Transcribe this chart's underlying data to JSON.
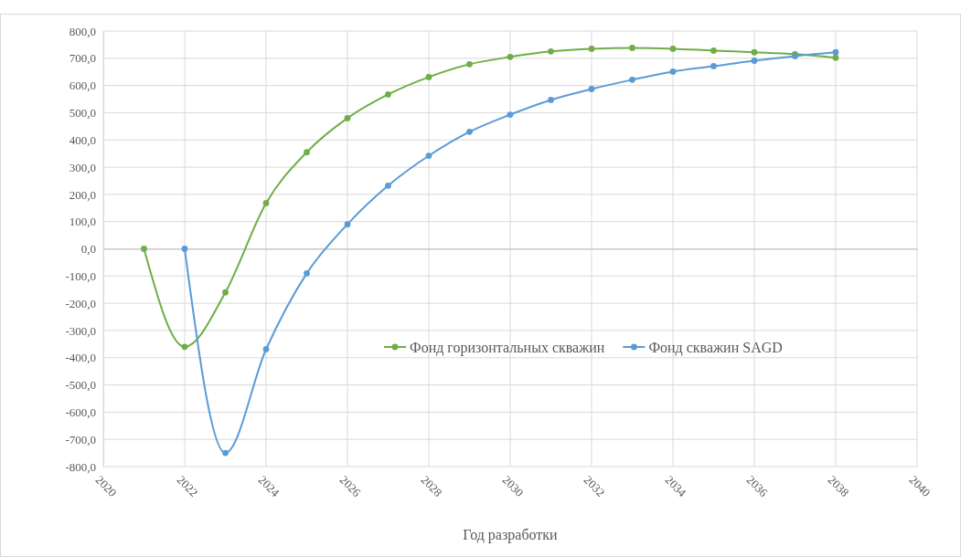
{
  "chart_data": {
    "type": "line",
    "xlabel": "Год разработки",
    "xlim": [
      2020,
      2040
    ],
    "xticks": [
      2020,
      2022,
      2024,
      2026,
      2028,
      2030,
      2032,
      2034,
      2036,
      2038,
      2040
    ],
    "ylim": [
      -800,
      800
    ],
    "yticks": [
      {
        "value": -800,
        "label": "-800,0"
      },
      {
        "value": -700,
        "label": "-700,0"
      },
      {
        "value": -600,
        "label": "-600,0"
      },
      {
        "value": -500,
        "label": "-500,0"
      },
      {
        "value": -400,
        "label": "-400,0"
      },
      {
        "value": -300,
        "label": "-300,0"
      },
      {
        "value": -200,
        "label": "-200,0"
      },
      {
        "value": -100,
        "label": "-100,0"
      },
      {
        "value": 0,
        "label": "0,0"
      },
      {
        "value": 100,
        "label": "100,0"
      },
      {
        "value": 200,
        "label": "200,0"
      },
      {
        "value": 300,
        "label": "300,0"
      },
      {
        "value": 400,
        "label": "400,0"
      },
      {
        "value": 500,
        "label": "500,0"
      },
      {
        "value": 600,
        "label": "600,0"
      },
      {
        "value": 700,
        "label": "700,0"
      },
      {
        "value": 800,
        "label": "800,0"
      }
    ],
    "grid": true,
    "legend": "right",
    "marker": "circle",
    "line_style": "solid",
    "series": [
      {
        "name": "Фонд горизонтальных скважин",
        "color": "#70ad47",
        "x": [
          2021,
          2022,
          2023,
          2024,
          2025,
          2026,
          2027,
          2028,
          2029,
          2030,
          2031,
          2032,
          2033,
          2034,
          2035,
          2036,
          2037,
          2038
        ],
        "values": [
          0,
          -360,
          -160,
          168,
          355,
          480,
          567,
          631,
          678,
          705,
          725,
          735,
          738,
          735,
          728,
          722,
          715,
          702
        ]
      },
      {
        "name": "Фонд скважин SAGD",
        "color": "#5b9bd5",
        "x": [
          2022,
          2023,
          2024,
          2025,
          2026,
          2027,
          2028,
          2029,
          2030,
          2031,
          2032,
          2033,
          2034,
          2035,
          2036,
          2037,
          2038
        ],
        "values": [
          0,
          -750,
          -369,
          -90,
          90,
          232,
          342,
          430,
          493,
          547,
          587,
          621,
          651,
          671,
          691,
          708,
          722
        ]
      }
    ]
  }
}
